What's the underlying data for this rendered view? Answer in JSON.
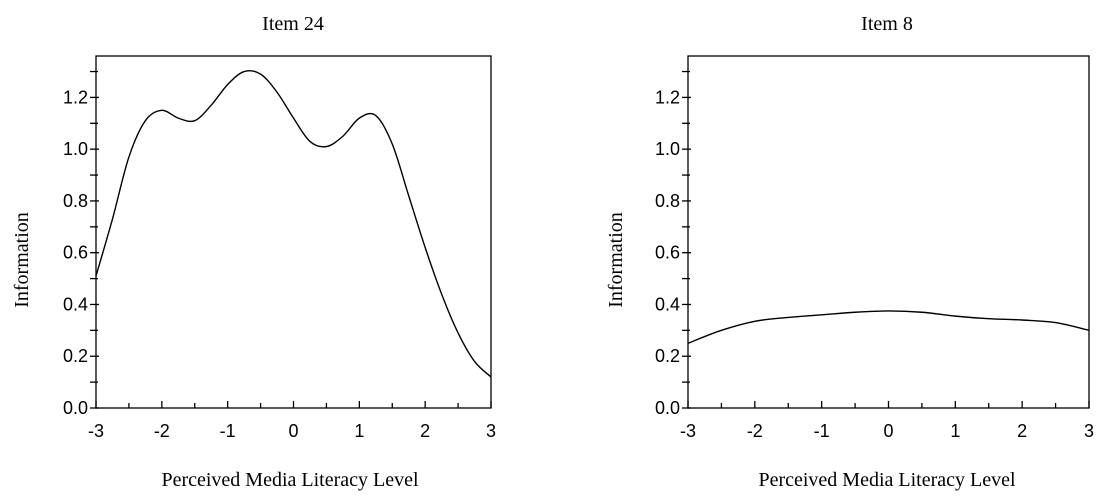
{
  "chart_data": [
    {
      "type": "line",
      "title": "Item 24",
      "xlabel": "Perceived Media Literacy Level",
      "ylabel": "Information",
      "xlim": [
        -3,
        3
      ],
      "ylim": [
        0,
        1.36
      ],
      "xticks": [
        "-3",
        "-2",
        "-1",
        "0",
        "1",
        "2",
        "3"
      ],
      "yticks": [
        "0.0",
        "0.2",
        "0.4",
        "0.6",
        "0.8",
        "1.0",
        "1.2"
      ],
      "grid": false,
      "series": [
        {
          "x": [
            -3.0,
            -2.75,
            -2.5,
            -2.25,
            -2.0,
            -1.75,
            -1.5,
            -1.25,
            -1.0,
            -0.75,
            -0.5,
            -0.25,
            0.0,
            0.25,
            0.5,
            0.75,
            1.0,
            1.25,
            1.5,
            1.75,
            2.0,
            2.25,
            2.5,
            2.75,
            3.0
          ],
          "y": [
            0.51,
            0.73,
            0.97,
            1.11,
            1.15,
            1.12,
            1.11,
            1.17,
            1.25,
            1.3,
            1.29,
            1.22,
            1.12,
            1.03,
            1.01,
            1.05,
            1.12,
            1.13,
            1.02,
            0.82,
            0.62,
            0.44,
            0.29,
            0.18,
            0.12
          ]
        }
      ]
    },
    {
      "type": "line",
      "title": "Item 8",
      "xlabel": "Perceived Media Literacy Level",
      "ylabel": "Information",
      "xlim": [
        -3,
        3
      ],
      "ylim": [
        0,
        1.36
      ],
      "xticks": [
        "-3",
        "-2",
        "-1",
        "0",
        "1",
        "2",
        "3"
      ],
      "yticks": [
        "0.0",
        "0.2",
        "0.4",
        "0.6",
        "0.8",
        "1.0",
        "1.2"
      ],
      "grid": false,
      "series": [
        {
          "x": [
            -3.0,
            -2.5,
            -2.0,
            -1.5,
            -1.0,
            -0.5,
            0.0,
            0.5,
            1.0,
            1.5,
            2.0,
            2.5,
            3.0
          ],
          "y": [
            0.25,
            0.3,
            0.335,
            0.35,
            0.36,
            0.37,
            0.375,
            0.37,
            0.355,
            0.345,
            0.34,
            0.33,
            0.3
          ]
        }
      ]
    }
  ]
}
